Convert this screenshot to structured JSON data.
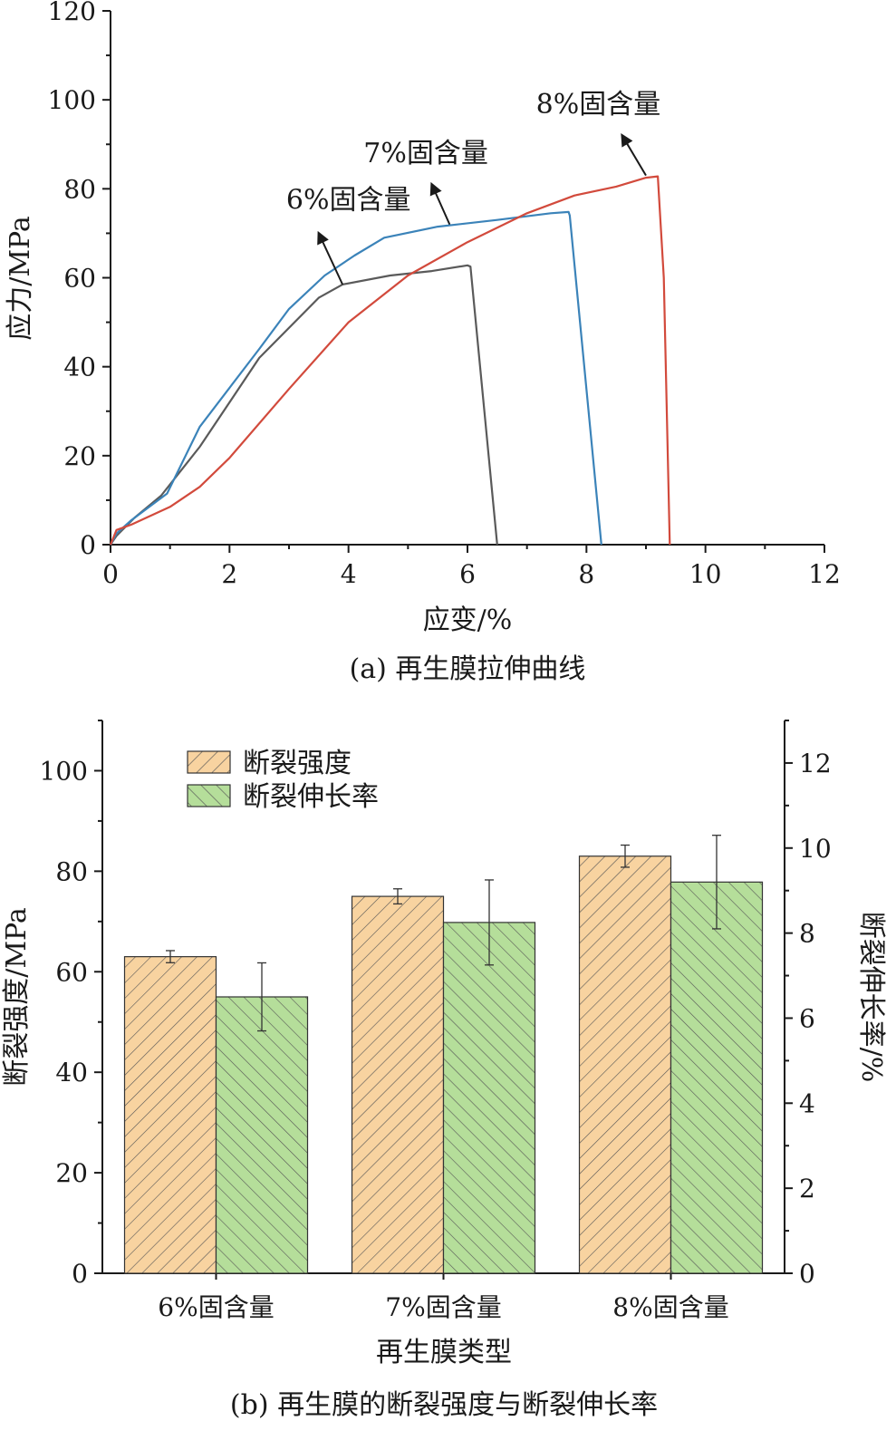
{
  "chart_data": [
    {
      "type": "line",
      "caption": "(a) 再生膜拉伸曲线",
      "xlabel": "应变/%",
      "ylabel": "应力/MPa",
      "xlim": [
        0,
        12
      ],
      "ylim": [
        0,
        120
      ],
      "x_ticks": [
        0,
        2,
        4,
        6,
        8,
        10,
        12
      ],
      "y_ticks": [
        0,
        20,
        40,
        60,
        80,
        100,
        120
      ],
      "series": [
        {
          "name": "6%固含量",
          "color": "#5a5a5a",
          "points": [
            [
              0,
              0
            ],
            [
              0.1,
              2
            ],
            [
              0.4,
              6
            ],
            [
              0.85,
              11
            ],
            [
              1.5,
              22
            ],
            [
              2.5,
              42
            ],
            [
              3.5,
              55.5
            ],
            [
              3.9,
              58.5
            ],
            [
              4.7,
              60.5
            ],
            [
              5.4,
              61.5
            ],
            [
              6.0,
              62.8
            ],
            [
              6.05,
              62.5
            ],
            [
              6.5,
              0
            ]
          ],
          "label": {
            "text": "6%固含量",
            "anchor": [
              3.9,
              58.5
            ],
            "tip": [
              3.5,
              70
            ],
            "at": [
              4.0,
              75.5
            ]
          }
        },
        {
          "name": "7%固含量",
          "color": "#3b83b9",
          "points": [
            [
              0,
              0
            ],
            [
              0.1,
              2.5
            ],
            [
              0.35,
              5.5
            ],
            [
              0.95,
              11.5
            ],
            [
              1.5,
              26.5
            ],
            [
              2.5,
              44
            ],
            [
              3.0,
              53
            ],
            [
              3.6,
              60.5
            ],
            [
              4.1,
              65
            ],
            [
              4.6,
              69
            ],
            [
              5.5,
              71.5
            ],
            [
              6.5,
              73
            ],
            [
              7.4,
              74.5
            ],
            [
              7.7,
              74.8
            ],
            [
              7.72,
              74
            ],
            [
              8.25,
              0
            ]
          ],
          "label": {
            "text": "7%固含量",
            "anchor": [
              5.7,
              72
            ],
            "tip": [
              5.4,
              81
            ],
            "at": [
              5.3,
              86
            ]
          }
        },
        {
          "name": "8%固含量",
          "color": "#d24a3c",
          "points": [
            [
              0,
              0
            ],
            [
              0.1,
              3.3
            ],
            [
              0.35,
              4.5
            ],
            [
              1.0,
              8.5
            ],
            [
              1.5,
              13
            ],
            [
              2.0,
              19.5
            ],
            [
              3.0,
              35
            ],
            [
              4.0,
              50
            ],
            [
              5.0,
              60.5
            ],
            [
              6.0,
              68
            ],
            [
              7.0,
              74.5
            ],
            [
              7.8,
              78.5
            ],
            [
              8.5,
              80.5
            ],
            [
              9.0,
              82.5
            ],
            [
              9.2,
              82.8
            ],
            [
              9.3,
              60
            ],
            [
              9.4,
              0
            ]
          ],
          "label": {
            "text": "8%固含量",
            "anchor": [
              9.0,
              83
            ],
            "tip": [
              8.6,
              92
            ],
            "at": [
              8.2,
              97
            ]
          }
        }
      ]
    },
    {
      "type": "bar",
      "caption": "(b) 再生膜的断裂强度与断裂伸长率",
      "xlabel": "再生膜类型",
      "ylabel_left": "断裂强度/MPa",
      "ylabel_right": "断裂伸长率/%",
      "categories": [
        "6%固含量",
        "7%固含量",
        "8%固含量"
      ],
      "ylim_left": [
        0,
        110
      ],
      "ylim_right": [
        0,
        13
      ],
      "y_ticks_left": [
        0,
        20,
        40,
        60,
        80,
        100
      ],
      "y_ticks_right": [
        0,
        2,
        4,
        6,
        8,
        10,
        12
      ],
      "series": [
        {
          "name": "断裂强度",
          "axis": "left",
          "color": "#f8d3a0",
          "hatch": "forward",
          "values": [
            63,
            75,
            83
          ],
          "errors": [
            1.2,
            1.5,
            2.2
          ]
        },
        {
          "name": "断裂伸长率",
          "axis": "right",
          "color": "#b5de9a",
          "hatch": "backward",
          "values": [
            6.5,
            8.25,
            9.2
          ],
          "errors": [
            0.8,
            1.0,
            1.1
          ]
        }
      ],
      "legend": [
        "断裂强度",
        "断裂伸长率"
      ]
    }
  ]
}
